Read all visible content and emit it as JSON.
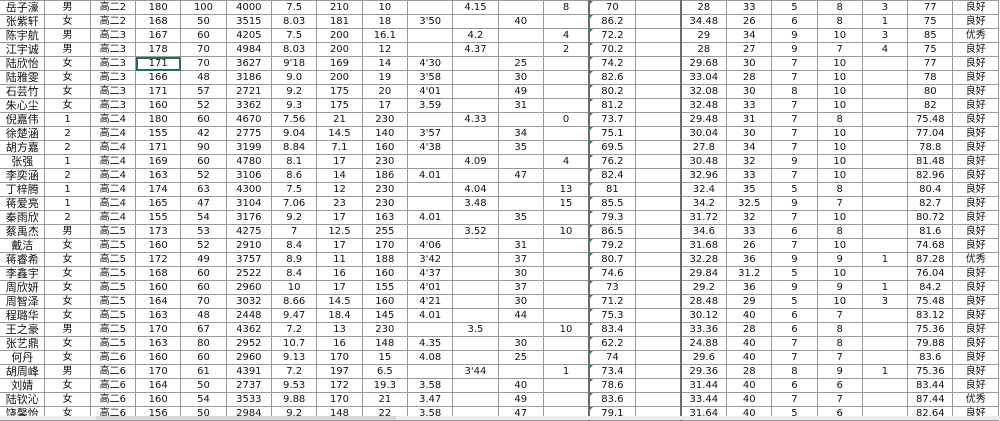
{
  "selected_cell": {
    "row": 5,
    "col": 4
  },
  "text_marker_color": "#1e8a3a",
  "selection_color": "#217346",
  "rows": [
    [
      "岳子濠",
      "男",
      "高二2",
      "180",
      "100",
      "4000",
      "7.5",
      "210",
      "10",
      "",
      "4.15",
      "",
      "8",
      "70",
      "",
      "28",
      "33",
      "5",
      "8",
      "3",
      "77",
      "良好"
    ],
    [
      "张紫轩",
      "女",
      "高二2",
      "168",
      "50",
      "3515",
      "8.03",
      "181",
      "18",
      "3'50",
      "",
      "40",
      "",
      "86.2",
      "",
      "34.48",
      "26",
      "6",
      "8",
      "1",
      "75",
      "良好"
    ],
    [
      "陈宇航",
      "男",
      "高二3",
      "167",
      "60",
      "4205",
      "7.5",
      "200",
      "16.1",
      "",
      "4.2",
      "",
      "4",
      "72.2",
      "",
      "29",
      "34",
      "9",
      "10",
      "3",
      "85",
      "优秀"
    ],
    [
      "江宇诚",
      "男",
      "高二3",
      "178",
      "70",
      "4984",
      "8.03",
      "200",
      "12",
      "",
      "4.37",
      "",
      "2",
      "70.2",
      "",
      "28",
      "27",
      "9",
      "7",
      "4",
      "75",
      "良好"
    ],
    [
      "陆欣怡",
      "女",
      "高二3",
      "171",
      "70",
      "3627",
      "9'18",
      "169",
      "14",
      "4'30",
      "",
      "25",
      "",
      "74.2",
      "",
      "29.68",
      "30",
      "7",
      "10",
      "",
      "77",
      "良好"
    ],
    [
      "陆雅雯",
      "女",
      "高二3",
      "166",
      "48",
      "3186",
      "9.0",
      "200",
      "19",
      "3'58",
      "",
      "30",
      "",
      "82.6",
      "",
      "33.04",
      "28",
      "7",
      "10",
      "",
      "78",
      "良好"
    ],
    [
      "石芸竹",
      "女",
      "高二3",
      "171",
      "57",
      "2721",
      "9.2",
      "175",
      "20",
      "4'01",
      "",
      "49",
      "",
      "80.2",
      "",
      "32.08",
      "30",
      "8",
      "10",
      "",
      "80",
      "良好"
    ],
    [
      "朱心尘",
      "女",
      "高二3",
      "160",
      "52",
      "3362",
      "9.3",
      "175",
      "17",
      "3.59",
      "",
      "31",
      "",
      "81.2",
      "",
      "32.48",
      "33",
      "7",
      "10",
      "",
      "82",
      "良好"
    ],
    [
      "倪嘉伟",
      "1",
      "高二4",
      "180",
      "60",
      "4670",
      "7.56",
      "21",
      "230",
      "",
      "4.33",
      "",
      "0",
      "73.7",
      "",
      "29.48",
      "31",
      "7",
      "8",
      "",
      "75.48",
      "良好"
    ],
    [
      "徐楚涵",
      "2",
      "高二4",
      "155",
      "42",
      "2775",
      "9.04",
      "14.5",
      "140",
      "3'57",
      "",
      "34",
      "",
      "75.1",
      "",
      "30.04",
      "30",
      "7",
      "10",
      "",
      "77.04",
      "良好"
    ],
    [
      "胡方嘉",
      "2",
      "高二4",
      "171",
      "90",
      "3199",
      "8.84",
      "7.1",
      "160",
      "4'38",
      "",
      "35",
      "",
      "69.5",
      "",
      "27.8",
      "34",
      "7",
      "10",
      "",
      "78.8",
      "良好"
    ],
    [
      "张强",
      "1",
      "高二4",
      "169",
      "60",
      "4780",
      "8.1",
      "17",
      "230",
      "",
      "4.09",
      "",
      "4",
      "76.2",
      "",
      "30.48",
      "32",
      "9",
      "10",
      "",
      "81.48",
      "良好"
    ],
    [
      "李奕涵",
      "2",
      "高二4",
      "163",
      "52",
      "3106",
      "8.6",
      "14",
      "186",
      "4.01",
      "",
      "47",
      "",
      "82.4",
      "",
      "32.96",
      "33",
      "7",
      "10",
      "",
      "82.96",
      "良好"
    ],
    [
      "丁梓腾",
      "1",
      "高二4",
      "174",
      "63",
      "4300",
      "7.5",
      "12",
      "230",
      "",
      "4.04",
      "",
      "13",
      "81",
      "",
      "32.4",
      "35",
      "5",
      "8",
      "",
      "80.4",
      "良好"
    ],
    [
      "蒋爱亮",
      "1",
      "高二4",
      "165",
      "47",
      "3104",
      "7.06",
      "23",
      "230",
      "",
      "3.48",
      "",
      "15",
      "85.5",
      "",
      "34.2",
      "32.5",
      "9",
      "7",
      "",
      "82.7",
      "良好"
    ],
    [
      "秦雨欣",
      "2",
      "高二4",
      "155",
      "54",
      "3176",
      "9.2",
      "17",
      "163",
      "4.01",
      "",
      "35",
      "",
      "79.3",
      "",
      "31.72",
      "32",
      "7",
      "10",
      "",
      "80.72",
      "良好"
    ],
    [
      "蔡禹杰",
      "男",
      "高二5",
      "173",
      "53",
      "4275",
      "7",
      "12.5",
      "255",
      "",
      "3.52",
      "",
      "10",
      "86.5",
      "",
      "34.6",
      "33",
      "6",
      "8",
      "",
      "81.6",
      "良好"
    ],
    [
      "戴洁",
      "女",
      "高二5",
      "160",
      "52",
      "2910",
      "8.4",
      "17",
      "170",
      "4'06",
      "",
      "31",
      "",
      "79.2",
      "",
      "31.68",
      "26",
      "7",
      "10",
      "",
      "74.68",
      "良好"
    ],
    [
      "蒋睿希",
      "女",
      "高二5",
      "172",
      "49",
      "3757",
      "8.9",
      "11",
      "188",
      "3'42",
      "",
      "37",
      "",
      "80.7",
      "",
      "32.28",
      "36",
      "9",
      "9",
      "1",
      "87.28",
      "优秀"
    ],
    [
      "李鑫宇",
      "女",
      "高二5",
      "168",
      "60",
      "2522",
      "8.4",
      "16",
      "160",
      "4'37",
      "",
      "30",
      "",
      "74.6",
      "",
      "29.84",
      "31.2",
      "5",
      "10",
      "",
      "76.04",
      "良好"
    ],
    [
      "周欣妍",
      "女",
      "高二5",
      "160",
      "60",
      "2960",
      "10",
      "17",
      "155",
      "4'01",
      "",
      "37",
      "",
      "73",
      "",
      "29.2",
      "36",
      "9",
      "9",
      "1",
      "84.2",
      "良好"
    ],
    [
      "周智泽",
      "女",
      "高二5",
      "164",
      "70",
      "3032",
      "8.66",
      "14.5",
      "160",
      "4'21",
      "",
      "30",
      "",
      "71.2",
      "",
      "28.48",
      "29",
      "5",
      "10",
      "3",
      "75.48",
      "良好"
    ],
    [
      "程璐华",
      "女",
      "高二5",
      "163",
      "48",
      "2448",
      "9.47",
      "18.4",
      "145",
      "4.01",
      "",
      "44",
      "",
      "75.3",
      "",
      "30.12",
      "40",
      "6",
      "7",
      "",
      "83.12",
      "良好"
    ],
    [
      "王之豪",
      "男",
      "高二5",
      "170",
      "67",
      "4362",
      "7.2",
      "13",
      "230",
      "",
      "3.5",
      "",
      "10",
      "83.4",
      "",
      "33.36",
      "28",
      "6",
      "8",
      "",
      "75.36",
      "良好"
    ],
    [
      "张艺鼎",
      "女",
      "高二5",
      "163",
      "80",
      "2952",
      "10.7",
      "16",
      "148",
      "4.35",
      "",
      "30",
      "",
      "62.2",
      "",
      "24.88",
      "40",
      "7",
      "8",
      "",
      "79.88",
      "良好"
    ],
    [
      "何丹",
      "女",
      "高二6",
      "160",
      "60",
      "2960",
      "9.13",
      "170",
      "15",
      "4.08",
      "",
      "25",
      "",
      "74",
      "",
      "29.6",
      "40",
      "7",
      "7",
      "",
      "83.6",
      "良好"
    ],
    [
      "胡周峰",
      "男",
      "高二6",
      "170",
      "61",
      "4391",
      "7.2",
      "197",
      "6.5",
      "",
      "3'44",
      "",
      "1",
      "73.4",
      "",
      "29.36",
      "28",
      "8",
      "9",
      "1",
      "75.36",
      "良好"
    ],
    [
      "刘婧",
      "女",
      "高二6",
      "164",
      "50",
      "2737",
      "9.53",
      "172",
      "19.3",
      "3.58",
      "",
      "40",
      "",
      "78.6",
      "",
      "31.44",
      "40",
      "6",
      "6",
      "",
      "83.44",
      "良好"
    ],
    [
      "陆钦沁",
      "女",
      "高二6",
      "160",
      "54",
      "3533",
      "9.88",
      "170",
      "21",
      "3.47",
      "",
      "49",
      "",
      "83.6",
      "",
      "33.44",
      "40",
      "7",
      "7",
      "",
      "87.44",
      "优秀"
    ],
    [
      "饶馨怡",
      "女",
      "高二6",
      "156",
      "50",
      "2984",
      "9.2",
      "148",
      "22",
      "3.58",
      "",
      "47",
      "",
      "79.1",
      "",
      "31.64",
      "40",
      "5",
      "6",
      "",
      "82.64",
      "良好"
    ]
  ]
}
